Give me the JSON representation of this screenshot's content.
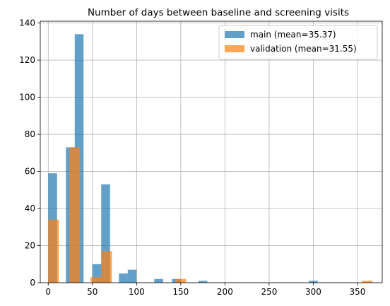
{
  "chart_data": {
    "type": "bar",
    "title": "Number of days between baseline and screening visits",
    "xlabel": "",
    "ylabel": "",
    "xlim": [
      -9,
      378
    ],
    "ylim": [
      0,
      141
    ],
    "xticks": [
      0,
      50,
      100,
      150,
      200,
      250,
      300,
      350
    ],
    "yticks": [
      0,
      20,
      40,
      60,
      80,
      100,
      120,
      140
    ],
    "grid": true,
    "legend_position": "top-right",
    "series": [
      {
        "name": "main (mean=35.37)",
        "color": "#1f77b4",
        "bin_width": 10,
        "bins": [
          {
            "x": 0,
            "count": 59
          },
          {
            "x": 20,
            "count": 73
          },
          {
            "x": 30,
            "count": 134
          },
          {
            "x": 50,
            "count": 10
          },
          {
            "x": 60,
            "count": 53
          },
          {
            "x": 80,
            "count": 5
          },
          {
            "x": 90,
            "count": 7
          },
          {
            "x": 120,
            "count": 2
          },
          {
            "x": 140,
            "count": 2
          },
          {
            "x": 170,
            "count": 1
          },
          {
            "x": 295,
            "count": 1
          }
        ]
      },
      {
        "name": "validation (mean=31.55)",
        "color": "#ff7f0e",
        "bin_width": 12,
        "bins": [
          {
            "x": 0,
            "count": 34
          },
          {
            "x": 24,
            "count": 73
          },
          {
            "x": 48,
            "count": 3
          },
          {
            "x": 60,
            "count": 17
          },
          {
            "x": 144,
            "count": 2
          },
          {
            "x": 355,
            "count": 1
          }
        ]
      }
    ]
  }
}
